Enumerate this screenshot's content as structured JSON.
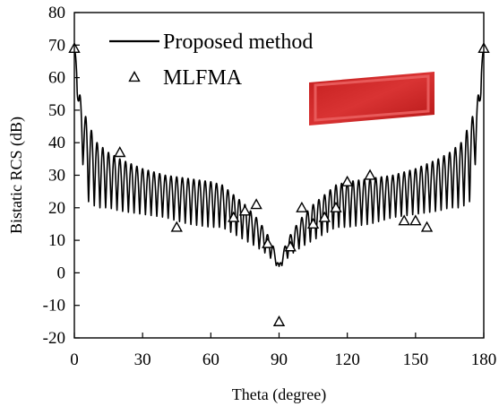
{
  "chart_data": {
    "type": "line",
    "title": "",
    "xlabel": "Theta (degree)",
    "ylabel": "Bistatic RCS (dB)",
    "xlim": [
      0,
      180
    ],
    "ylim": [
      -20,
      80
    ],
    "x_ticks": [
      0,
      30,
      60,
      90,
      120,
      150,
      180
    ],
    "y_ticks": [
      -20,
      -10,
      0,
      10,
      20,
      30,
      40,
      50,
      60,
      70,
      80
    ],
    "grid": false,
    "legend": {
      "placement": "top-left",
      "entries": [
        "Proposed method",
        "MLFMA"
      ]
    },
    "series": [
      {
        "name": "Proposed method",
        "style": "line",
        "color": "#000000",
        "envelope_x": [
          0,
          1,
          2,
          4,
          6,
          10,
          15,
          20,
          30,
          40,
          50,
          60,
          65,
          70,
          75,
          80,
          84,
          87,
          89,
          90,
          91,
          93,
          96,
          100,
          105,
          110,
          115,
          120,
          130,
          140,
          150,
          160,
          165,
          170,
          174,
          176,
          178,
          179,
          180
        ],
        "envelope_upper": [
          69,
          66,
          56,
          50,
          46,
          40,
          37,
          35,
          32,
          30,
          29,
          28,
          27,
          24,
          21,
          17,
          13,
          9,
          5,
          2,
          5,
          9,
          13,
          17,
          21,
          24,
          27,
          28,
          29,
          30,
          32,
          35,
          37,
          40,
          46,
          50,
          56,
          66,
          69
        ],
        "envelope_lower": [
          69,
          60,
          42,
          32,
          22,
          20,
          20,
          19,
          18,
          17,
          15,
          14,
          14,
          12,
          10,
          8,
          6,
          4,
          2,
          1,
          2,
          4,
          6,
          8,
          10,
          12,
          14,
          14,
          15,
          17,
          18,
          19,
          20,
          20,
          22,
          32,
          42,
          60,
          69
        ],
        "oscillation_period_deg": 2.5
      },
      {
        "name": "MLFMA",
        "style": "triangle-markers",
        "color": "#000000",
        "x": [
          0,
          20,
          45,
          70,
          75,
          80,
          85,
          90,
          95,
          100,
          105,
          110,
          115,
          120,
          130,
          145,
          150,
          155,
          180
        ],
        "y": [
          69,
          37,
          14,
          17,
          19,
          21,
          9,
          -15,
          8,
          20,
          15,
          17,
          20,
          28,
          30,
          16,
          16,
          14,
          69
        ]
      }
    ]
  },
  "inset": {
    "description_color": "#d42a2a"
  }
}
